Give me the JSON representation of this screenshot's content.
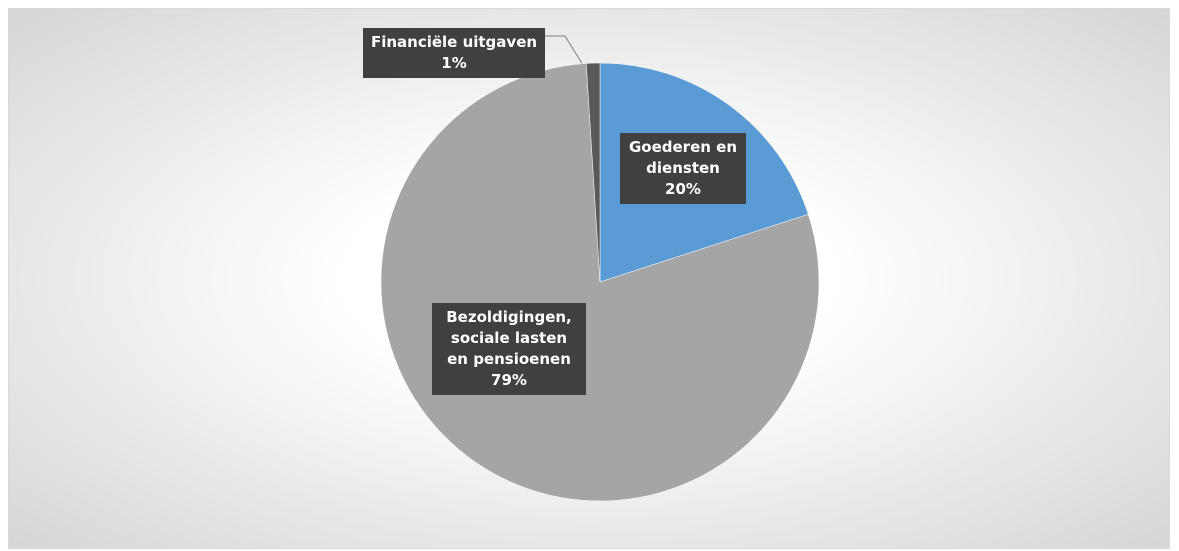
{
  "chart_data": {
    "type": "pie",
    "categories": [
      "Goederen en diensten",
      "Bezoldigingen, sociale lasten en pensioenen",
      "Financiële uitgaven"
    ],
    "values": [
      20,
      79,
      1
    ],
    "value_labels": [
      "20%",
      "79%",
      "1%"
    ],
    "colors": [
      "#5b9bd5",
      "#a5a5a5",
      "#595959"
    ]
  }
}
